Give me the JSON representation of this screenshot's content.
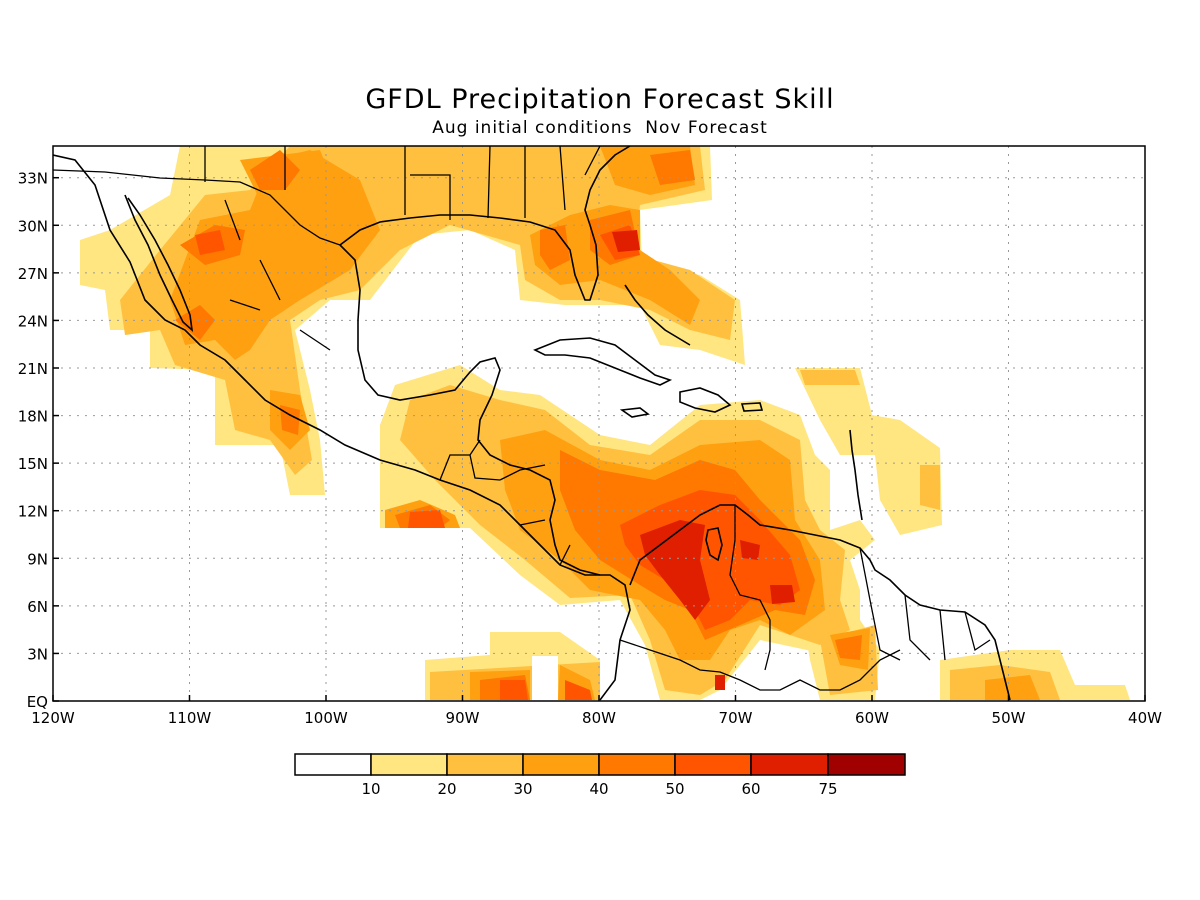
{
  "title": "GFDL Precipitation Forecast Skill",
  "subtitle": "Aug initial conditions  Nov Forecast",
  "colors": {
    "c10": "#ffe680",
    "c20": "#ffc040",
    "c30": "#ffa010",
    "c40": "#ff7800",
    "c50": "#ff5500",
    "c60": "#e01e00",
    "c75": "#a00000"
  },
  "map": {
    "lon_range": [
      -120,
      -40
    ],
    "lat_range": [
      0,
      35
    ],
    "x_ticks": [
      "120W",
      "110W",
      "100W",
      "90W",
      "80W",
      "70W",
      "60W",
      "50W",
      "40W"
    ],
    "y_ticks": [
      "EQ",
      "3N",
      "6N",
      "9N",
      "12N",
      "15N",
      "18N",
      "21N",
      "24N",
      "27N",
      "30N",
      "33N"
    ],
    "grid": "dotted"
  },
  "colorbar": {
    "labels": [
      "10",
      "20",
      "30",
      "40",
      "50",
      "60",
      "75"
    ]
  }
}
